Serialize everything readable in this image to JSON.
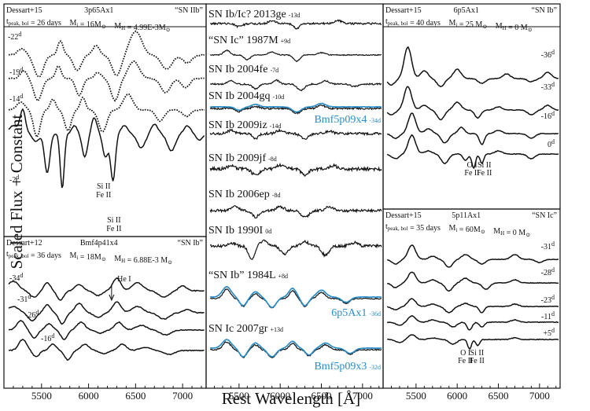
{
  "chart_data": {
    "type": "line",
    "ylabel": "Scaled Flux + Constant",
    "xlabel": "Rest Wavelength [Å]",
    "x_ticks": [
      "5500",
      "6000",
      "6500",
      "7000"
    ],
    "xlim": [
      5100,
      7250
    ],
    "panels": [
      {
        "id": "top-left",
        "header": [
          "Dessart+15",
          "3p65Ax1",
          "“SN IIb”"
        ],
        "subheader": [
          "t",
          "peak, bol",
          " = 26 days",
          "M",
          "i",
          " = 16M",
          "⊙",
          "M",
          "H",
          " = 4.99E-3M",
          "⊙"
        ],
        "series": [
          {
            "name": "-22",
            "label": "-22",
            "sup": "d",
            "style": "dotted"
          },
          {
            "name": "-19",
            "label": "-19",
            "sup": "d",
            "style": "dotted"
          },
          {
            "name": "-14",
            "label": "-14",
            "sup": "d",
            "style": "dotted"
          },
          {
            "name": "-2",
            "label": "-2",
            "sup": "d",
            "style": "solid"
          }
        ],
        "annotations": [
          {
            "text": [
              "Si II",
              "Fe II"
            ],
            "x": 6160
          },
          {
            "text": [
              "Si II",
              "Fe II"
            ],
            "x": 6270
          }
        ]
      },
      {
        "id": "bottom-left",
        "header": [
          "Dessart+12",
          "Bmf4p41x4",
          "“SN Ib”"
        ],
        "subheader": [
          "t",
          "peak, bol",
          " = 36 days",
          "M",
          "i",
          " = 18M",
          "⊙",
          "M",
          "H",
          " = 6.88E-3 M",
          "⊙"
        ],
        "series": [
          {
            "name": "-34",
            "label": "-34",
            "sup": "d"
          },
          {
            "name": "-31",
            "label": "-31",
            "sup": "d"
          },
          {
            "name": "-26",
            "label": "-26",
            "sup": "d"
          },
          {
            "name": "-16",
            "label": "-16",
            "sup": "d"
          }
        ],
        "annotations": [
          {
            "text": [
              "He I"
            ],
            "x": 6245
          }
        ]
      },
      {
        "id": "middle",
        "series": [
          {
            "name": "SN Ib/Ic? 2013ge",
            "label": "SN Ib/Ic? 2013ge",
            "sup": "-13d"
          },
          {
            "name": "“SN Ic” 1987M",
            "label": "“SN Ic” 1987M",
            "sup": "+9d"
          },
          {
            "name": "SN Ib 2004fe",
            "label": "SN Ib 2004fe",
            "sup": "-7d"
          },
          {
            "name": "SN Ib 2004gq",
            "label": "SN Ib 2004gq",
            "sup": "-10d",
            "model": "Bmf5p09x4",
            "model_sup": "-34d"
          },
          {
            "name": "SN Ib 2009iz",
            "label": "SN Ib 2009iz",
            "sup": "-14d"
          },
          {
            "name": "SN Ib 2009jf",
            "label": "SN Ib 2009jf",
            "sup": "-8d"
          },
          {
            "name": "SN Ib 2006ep",
            "label": "SN Ib 2006ep",
            "sup": "-8d"
          },
          {
            "name": "SN Ib 1990I",
            "label": "SN Ib 1990I",
            "sup": "0d"
          },
          {
            "name": "“SN Ib” 1984L",
            "label": "“SN Ib” 1984L",
            "sup": "+8d",
            "model": "6p5Ax1",
            "model_sup": "-36d"
          },
          {
            "name": "SN Ic 2007gr",
            "label": "SN Ic 2007gr",
            "sup": "+13d",
            "model": "Bmf5p09x3",
            "model_sup": "-32d"
          }
        ]
      },
      {
        "id": "top-right",
        "header": [
          "Dessart+15",
          "6p5Ax1",
          "“SN Ib”"
        ],
        "subheader": [
          "t",
          "peak, bol",
          " = 40 days",
          "M",
          "i",
          " = 25 M",
          "⊙",
          "M",
          "H",
          " = 0 M",
          "⊙"
        ],
        "series": [
          {
            "name": "-36",
            "label": "-36",
            "sup": "d"
          },
          {
            "name": "-33",
            "label": "-33",
            "sup": "d"
          },
          {
            "name": "-16",
            "label": "-16",
            "sup": "d"
          },
          {
            "name": "0",
            "label": "0",
            "sup": "d"
          }
        ],
        "annotations": [
          {
            "text": [
              "O I",
              "Fe II"
            ],
            "x": 6180
          },
          {
            "text": [
              "Si II",
              "Fe II"
            ],
            "x": 6330
          }
        ]
      },
      {
        "id": "bottom-right",
        "header": [
          "Dessart+15",
          "5p11Ax1",
          "“SN Ic”"
        ],
        "subheader": [
          "t",
          "peak, bol",
          " = 35 days",
          "M",
          "i",
          " = 60M",
          "⊙",
          "M",
          "H",
          " = 0 M",
          "⊙"
        ],
        "series": [
          {
            "name": "-31",
            "label": "-31",
            "sup": "d"
          },
          {
            "name": "-28",
            "label": "-28",
            "sup": "d"
          },
          {
            "name": "-23",
            "label": "-23",
            "sup": "d"
          },
          {
            "name": "-11",
            "label": "-11",
            "sup": "d"
          },
          {
            "name": "+5",
            "label": "+5",
            "sup": "d"
          }
        ],
        "annotations": [
          {
            "text": [
              "O I",
              "Fe II"
            ],
            "x": 6100
          },
          {
            "text": [
              "Si II",
              "Fe II"
            ],
            "x": 6240
          }
        ]
      }
    ],
    "colors": {
      "observed": "#111111",
      "model": "#2a8cc4"
    }
  }
}
